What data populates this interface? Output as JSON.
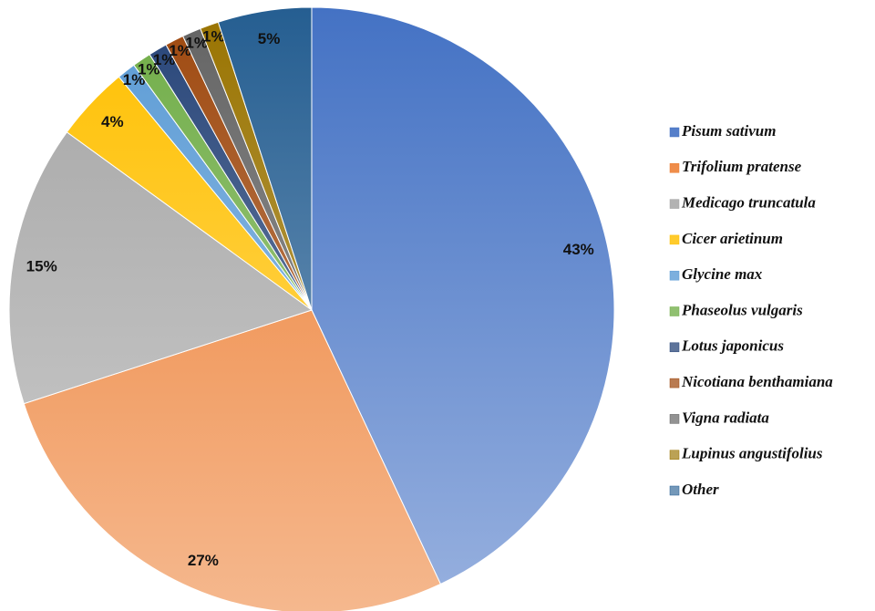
{
  "chart_data": {
    "type": "pie",
    "categories": [
      "Pisum sativum",
      "Trifolium pratense",
      "Medicago truncatula",
      "Cicer arietinum",
      "Glycine max",
      "Phaseolus vulgaris",
      "Lotus japonicus",
      "Nicotiana benthamiana",
      "Vigna radiata",
      "Lupinus angustifolius",
      "Other"
    ],
    "values": [
      43,
      27,
      15,
      4,
      1,
      1,
      1,
      1,
      1,
      1,
      5
    ],
    "value_labels": [
      "43%",
      "27%",
      "15%",
      "4%",
      "1%",
      "1%",
      "1%",
      "1%",
      "1%",
      "1%",
      "5%"
    ],
    "colors": [
      "#4472c4",
      "#ed7d31",
      "#a5a5a5",
      "#ffc000",
      "#5b9bd5",
      "#70ad47",
      "#264478",
      "#9e480e",
      "#636363",
      "#997300",
      "#255e91"
    ],
    "legend": "right"
  }
}
